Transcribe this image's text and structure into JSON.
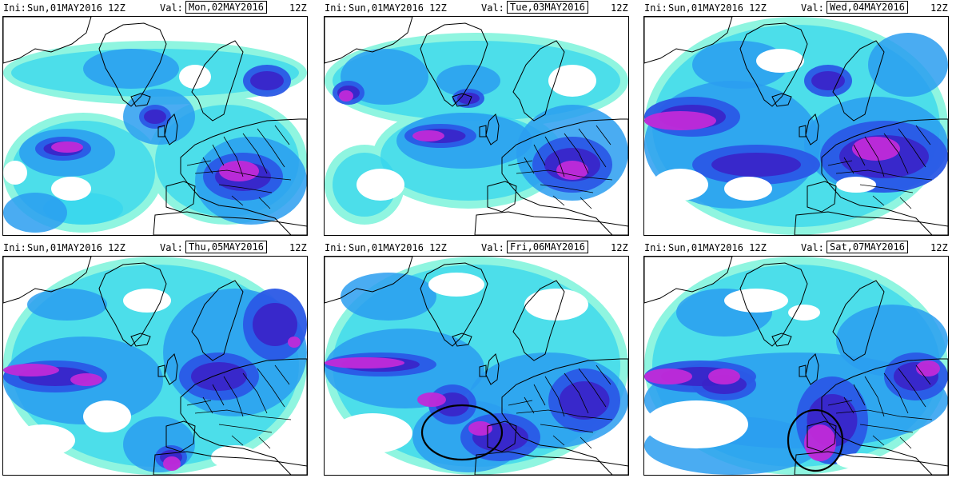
{
  "panels": [
    {
      "ini_label": "Ini:",
      "ini": "Sun,01MAY2016",
      "ini_hour": "12Z",
      "val_label": "Val:",
      "valid": "Mon,02MAY2016",
      "hour": "12Z",
      "circle": false
    },
    {
      "ini_label": "Ini:",
      "ini": "Sun,01MAY2016",
      "ini_hour": "12Z",
      "val_label": "Val:",
      "valid": "Tue,03MAY2016",
      "hour": "12Z",
      "circle": false
    },
    {
      "ini_label": "Ini:",
      "ini": "Sun,01MAY2016",
      "ini_hour": "12Z",
      "val_label": "Val:",
      "valid": "Wed,04MAY2016",
      "hour": "12Z",
      "circle": false
    },
    {
      "ini_label": "Ini:",
      "ini": "Sun,01MAY2016",
      "ini_hour": "12Z",
      "val_label": "Val:",
      "valid": "Thu,05MAY2016",
      "hour": "12Z",
      "circle": false
    },
    {
      "ini_label": "Ini:",
      "ini": "Sun,01MAY2016",
      "ini_hour": "12Z",
      "val_label": "Val:",
      "valid": "Fri,06MAY2016",
      "hour": "12Z",
      "circle": true
    },
    {
      "ini_label": "Ini:",
      "ini": "Sun,01MAY2016",
      "ini_hour": "12Z",
      "val_label": "Val:",
      "valid": "Sat,07MAY2016",
      "hour": "12Z",
      "circle": true
    }
  ],
  "colors": {
    "field_light": "#8ff5e0",
    "field_cyan": "#36d6ee",
    "field_sky": "#2a9ef0",
    "field_blue": "#2a58e6",
    "field_deep": "#3a22c8",
    "field_magenta": "#c02ad8",
    "coast": "#000000",
    "circle": "#000000"
  }
}
